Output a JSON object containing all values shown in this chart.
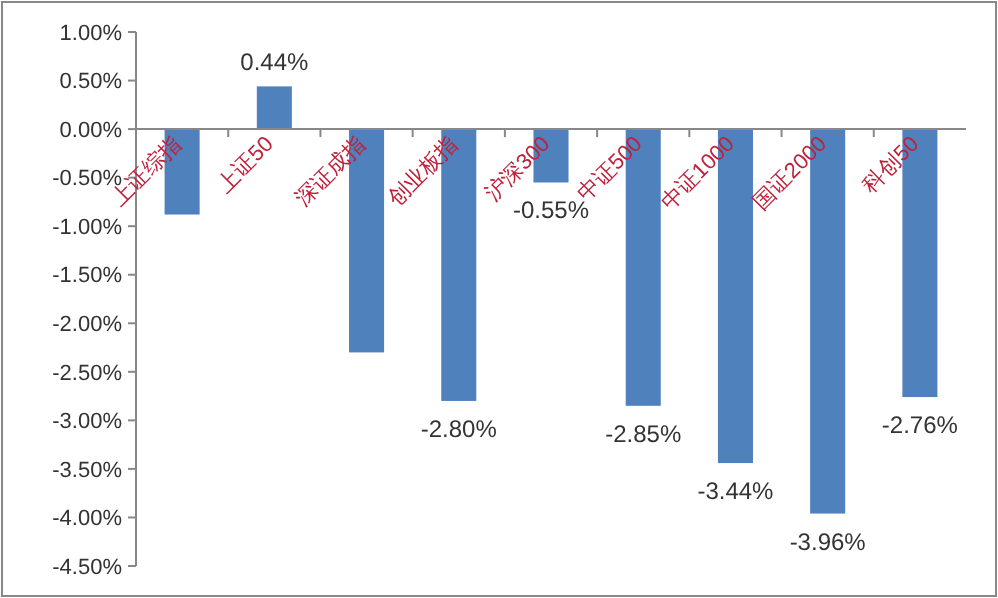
{
  "chart_data": {
    "type": "bar",
    "categories": [
      "上证综指",
      "上证50",
      "深证成指",
      "创业板指",
      "沪深300",
      "中证500",
      "中证1000",
      "国证2000",
      "科创50"
    ],
    "series": [
      {
        "color": "#4f81bd",
        "values": [
          -0.88,
          0.44,
          -2.3,
          -2.8,
          -0.55,
          -2.85,
          -3.44,
          -3.96,
          -2.76
        ],
        "value_labels": [
          null,
          "0.44%",
          null,
          "-2.80%",
          "-0.55%",
          "-2.85%",
          "-3.44%",
          "-3.96%",
          "-2.76%"
        ]
      }
    ],
    "ylim": [
      -4.5,
      1
    ],
    "yticks": [
      {
        "value": 1,
        "label": "1.00%"
      },
      {
        "value": 0.5,
        "label": "0.50%"
      },
      {
        "value": 0,
        "label": "0.00%"
      },
      {
        "value": -0.5,
        "label": "-0.50%"
      },
      {
        "value": -1,
        "label": "-1.00%"
      },
      {
        "value": -1.5,
        "label": "-1.50%"
      },
      {
        "value": -2,
        "label": "-2.00%"
      },
      {
        "value": -2.5,
        "label": "-2.50%"
      },
      {
        "value": -3,
        "label": "-3.00%"
      },
      {
        "value": -3.5,
        "label": "-3.50%"
      },
      {
        "value": -4,
        "label": "-4.00%"
      },
      {
        "value": -4.5,
        "label": "-4.50%"
      }
    ],
    "grid": false
  }
}
